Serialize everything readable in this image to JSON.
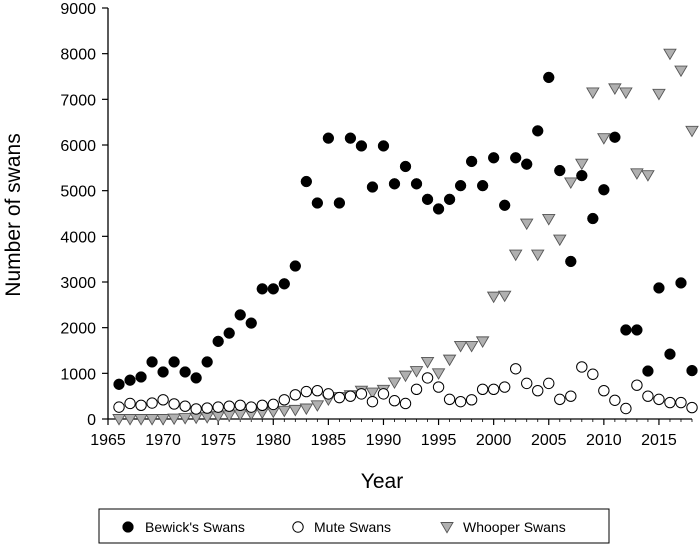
{
  "chart_data": {
    "type": "scatter",
    "title": "",
    "xlabel": "Year",
    "ylabel": "Number of swans",
    "xlim": [
      1965,
      2018
    ],
    "ylim": [
      0,
      9000
    ],
    "xticks": [
      "1965",
      "1970",
      "1975",
      "1980",
      "1985",
      "1990",
      "1995",
      "2000",
      "2005",
      "2010",
      "2015"
    ],
    "yticks": [
      "0",
      "1000",
      "2000",
      "3000",
      "4000",
      "5000",
      "6000",
      "7000",
      "8000",
      "9000"
    ],
    "grid": false,
    "legend_position": "bottom",
    "series": [
      {
        "name": "Bewick's Swans",
        "marker": "filled-circle",
        "color": "#000000",
        "points": [
          [
            1966,
            760
          ],
          [
            1967,
            850
          ],
          [
            1968,
            920
          ],
          [
            1969,
            1250
          ],
          [
            1970,
            1030
          ],
          [
            1971,
            1250
          ],
          [
            1972,
            1030
          ],
          [
            1973,
            900
          ],
          [
            1974,
            1250
          ],
          [
            1975,
            1700
          ],
          [
            1976,
            1880
          ],
          [
            1977,
            2280
          ],
          [
            1978,
            2100
          ],
          [
            1979,
            2850
          ],
          [
            1980,
            2850
          ],
          [
            1981,
            2960
          ],
          [
            1982,
            3350
          ],
          [
            1983,
            5200
          ],
          [
            1984,
            4730
          ],
          [
            1985,
            6150
          ],
          [
            1986,
            4730
          ],
          [
            1987,
            6150
          ],
          [
            1988,
            5980
          ],
          [
            1989,
            5080
          ],
          [
            1990,
            5980
          ],
          [
            1991,
            5150
          ],
          [
            1992,
            5530
          ],
          [
            1993,
            5150
          ],
          [
            1994,
            4810
          ],
          [
            1995,
            4600
          ],
          [
            1996,
            4810
          ],
          [
            1997,
            5110
          ],
          [
            1998,
            5640
          ],
          [
            1999,
            5110
          ],
          [
            2000,
            5720
          ],
          [
            2001,
            4680
          ],
          [
            2002,
            5720
          ],
          [
            2003,
            5580
          ],
          [
            2004,
            6310
          ],
          [
            2005,
            7480
          ],
          [
            2006,
            5440
          ],
          [
            2007,
            3450
          ],
          [
            2008,
            5330
          ],
          [
            2009,
            4390
          ],
          [
            2010,
            5020
          ],
          [
            2011,
            6170
          ],
          [
            2012,
            1950
          ],
          [
            2013,
            1950
          ],
          [
            2014,
            1050
          ],
          [
            2015,
            2870
          ],
          [
            2016,
            1420
          ],
          [
            2017,
            2980
          ],
          [
            2018,
            1060
          ]
        ]
      },
      {
        "name": "Mute Swans",
        "marker": "open-circle",
        "color": "#000000",
        "points": [
          [
            1966,
            260
          ],
          [
            1967,
            340
          ],
          [
            1968,
            300
          ],
          [
            1969,
            350
          ],
          [
            1970,
            420
          ],
          [
            1971,
            330
          ],
          [
            1972,
            280
          ],
          [
            1973,
            220
          ],
          [
            1974,
            240
          ],
          [
            1975,
            260
          ],
          [
            1976,
            280
          ],
          [
            1977,
            300
          ],
          [
            1978,
            260
          ],
          [
            1979,
            300
          ],
          [
            1980,
            320
          ],
          [
            1981,
            420
          ],
          [
            1982,
            530
          ],
          [
            1983,
            600
          ],
          [
            1984,
            620
          ],
          [
            1985,
            550
          ],
          [
            1986,
            470
          ],
          [
            1987,
            500
          ],
          [
            1988,
            550
          ],
          [
            1989,
            380
          ],
          [
            1990,
            550
          ],
          [
            1991,
            400
          ],
          [
            1992,
            340
          ],
          [
            1993,
            650
          ],
          [
            1994,
            900
          ],
          [
            1995,
            700
          ],
          [
            1996,
            430
          ],
          [
            1997,
            380
          ],
          [
            1998,
            420
          ],
          [
            1999,
            650
          ],
          [
            2000,
            650
          ],
          [
            2001,
            700
          ],
          [
            2002,
            1100
          ],
          [
            2003,
            780
          ],
          [
            2004,
            620
          ],
          [
            2005,
            780
          ],
          [
            2006,
            430
          ],
          [
            2007,
            500
          ],
          [
            2008,
            1140
          ],
          [
            2009,
            980
          ],
          [
            2010,
            620
          ],
          [
            2011,
            410
          ],
          [
            2012,
            230
          ],
          [
            2013,
            740
          ],
          [
            2014,
            500
          ],
          [
            2015,
            430
          ],
          [
            2016,
            360
          ],
          [
            2017,
            360
          ],
          [
            2018,
            250
          ]
        ]
      },
      {
        "name": "Whooper Swans",
        "marker": "triangle-down",
        "color": "#b0b0b0",
        "points": [
          [
            1966,
            0
          ],
          [
            1967,
            0
          ],
          [
            1968,
            0
          ],
          [
            1969,
            0
          ],
          [
            1970,
            0
          ],
          [
            1971,
            10
          ],
          [
            1972,
            20
          ],
          [
            1973,
            30
          ],
          [
            1974,
            40
          ],
          [
            1975,
            60
          ],
          [
            1976,
            80
          ],
          [
            1977,
            100
          ],
          [
            1978,
            110
          ],
          [
            1979,
            140
          ],
          [
            1980,
            160
          ],
          [
            1981,
            180
          ],
          [
            1982,
            200
          ],
          [
            1983,
            230
          ],
          [
            1984,
            300
          ],
          [
            1985,
            430
          ],
          [
            1986,
            480
          ],
          [
            1987,
            520
          ],
          [
            1988,
            620
          ],
          [
            1989,
            580
          ],
          [
            1990,
            640
          ],
          [
            1991,
            800
          ],
          [
            1992,
            950
          ],
          [
            1993,
            1050
          ],
          [
            1994,
            1250
          ],
          [
            1995,
            1000
          ],
          [
            1996,
            1300
          ],
          [
            1997,
            1600
          ],
          [
            1998,
            1600
          ],
          [
            1999,
            1700
          ],
          [
            2000,
            2680
          ],
          [
            2001,
            2700
          ],
          [
            2002,
            3600
          ],
          [
            2003,
            4280
          ],
          [
            2004,
            3600
          ],
          [
            2005,
            4380
          ],
          [
            2006,
            3930
          ],
          [
            2007,
            5180
          ],
          [
            2008,
            5590
          ],
          [
            2009,
            7150
          ],
          [
            2010,
            6150
          ],
          [
            2011,
            7240
          ],
          [
            2012,
            7150
          ],
          [
            2013,
            5380
          ],
          [
            2014,
            5340
          ],
          [
            2015,
            7120
          ],
          [
            2016,
            8000
          ],
          [
            2017,
            7630
          ],
          [
            2018,
            6310
          ]
        ]
      }
    ]
  }
}
